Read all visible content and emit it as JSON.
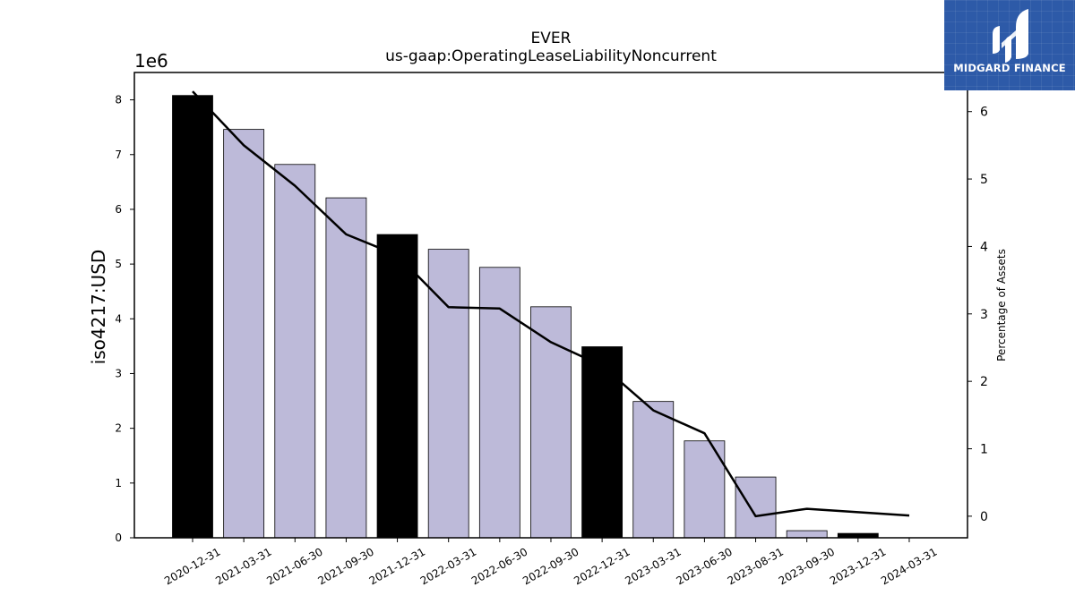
{
  "chart_data": {
    "type": "bar",
    "title": "EVER",
    "subtitle": "us-gaap:OperatingLeaseLiabilityNoncurrent",
    "ylabel": "iso4217:USD",
    "y2label": "Percentage of Assets",
    "y_offset_label": "1e6",
    "categories": [
      "2020-12-31",
      "2021-03-31",
      "2021-06-30",
      "2021-09-30",
      "2021-12-31",
      "2022-03-31",
      "2022-06-30",
      "2022-09-30",
      "2022-12-31",
      "2023-03-31",
      "2023-06-30",
      "2023-08-31",
      "2023-09-30",
      "2023-12-31",
      "2024-03-31"
    ],
    "values": [
      8080000,
      7460000,
      6820000,
      6210000,
      5540000,
      5270000,
      4940000,
      4220000,
      3490000,
      2490000,
      1770000,
      1110000,
      130000,
      80000,
      0
    ],
    "bar_colors": [
      "#000000",
      "#bdbad9",
      "#bdbad9",
      "#bdbad9",
      "#000000",
      "#bdbad9",
      "#bdbad9",
      "#bdbad9",
      "#000000",
      "#bdbad9",
      "#bdbad9",
      "#bdbad9",
      "#bdbad9",
      "#000000",
      "#bdbad9"
    ],
    "line_series": {
      "name": "Percentage of Assets",
      "values": [
        6.3,
        5.5,
        4.9,
        4.18,
        3.87,
        3.1,
        3.08,
        2.58,
        2.23,
        1.57,
        1.23,
        0.0,
        0.11,
        0.06,
        0.01
      ]
    },
    "ylim": [
      0,
      8500000
    ],
    "yticks": [
      0,
      1,
      2,
      3,
      4,
      5,
      6,
      7,
      8
    ],
    "y2lim": [
      -0.32,
      6.58
    ],
    "y2ticks": [
      0,
      1,
      2,
      3,
      4,
      5,
      6
    ],
    "grid": false,
    "legend": "none"
  },
  "logo": {
    "text": "MIDGARD FINANCE"
  }
}
